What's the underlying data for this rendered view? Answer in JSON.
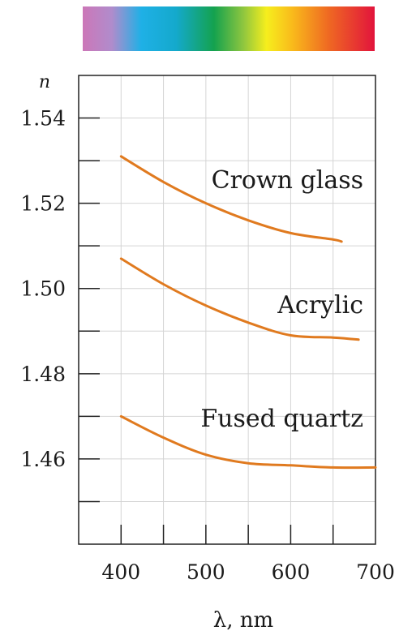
{
  "chart_data": {
    "type": "line",
    "title": "",
    "ylabel": "n",
    "xlabel": "λ, nm",
    "xlim": [
      350,
      700
    ],
    "ylim": [
      1.44,
      1.55
    ],
    "x_ticks": [
      400,
      500,
      600,
      700
    ],
    "x_tick_labels": [
      "400",
      "500",
      "600",
      "700"
    ],
    "y_ticks": [
      1.46,
      1.48,
      1.5,
      1.52,
      1.54
    ],
    "y_tick_labels": [
      "1.46",
      "1.48",
      "1.50",
      "1.52",
      "1.54"
    ],
    "grid": true,
    "spectrum_bar": true,
    "line_color": "#e07a1f",
    "series": [
      {
        "name": "Crown glass",
        "x": [
          400,
          450,
          500,
          550,
          600,
          650,
          660
        ],
        "y": [
          1.531,
          1.525,
          1.52,
          1.516,
          1.513,
          1.5115,
          1.511
        ]
      },
      {
        "name": "Acrylic",
        "x": [
          400,
          450,
          500,
          550,
          600,
          650,
          680
        ],
        "y": [
          1.507,
          1.501,
          1.496,
          1.492,
          1.489,
          1.4885,
          1.488
        ]
      },
      {
        "name": "Fused quartz",
        "x": [
          400,
          450,
          500,
          550,
          600,
          650,
          700
        ],
        "y": [
          1.47,
          1.465,
          1.461,
          1.459,
          1.4585,
          1.458,
          1.458
        ]
      }
    ]
  }
}
